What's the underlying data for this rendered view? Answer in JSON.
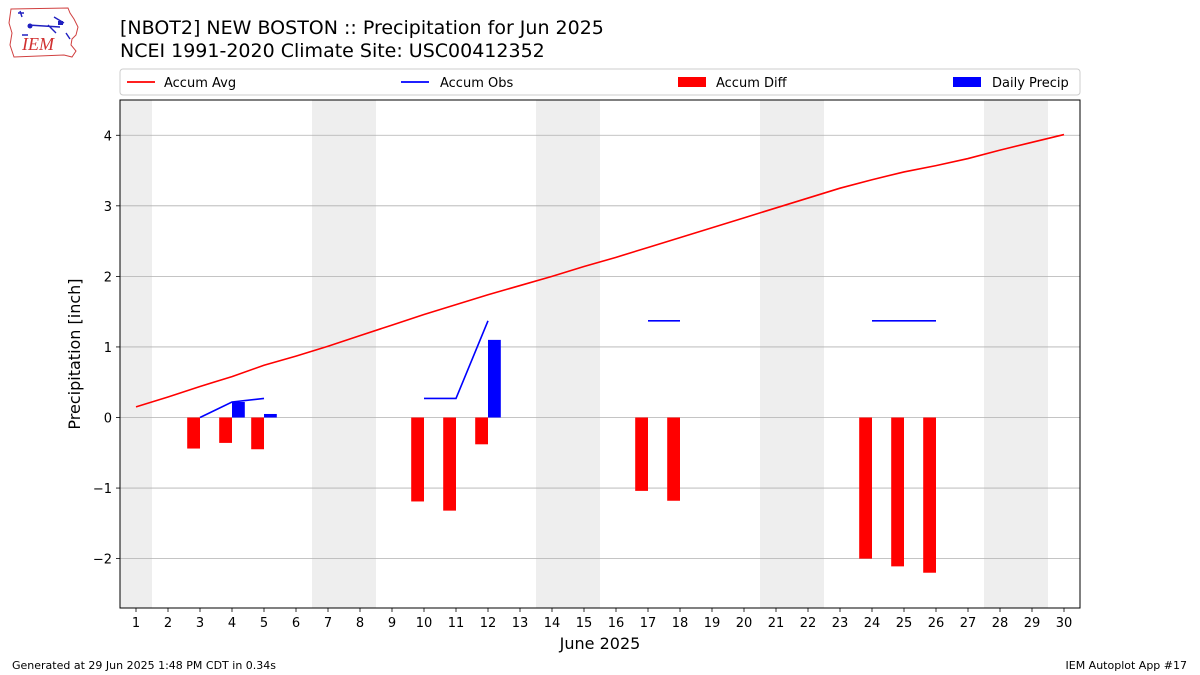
{
  "title_line1": "[NBOT2] NEW BOSTON :: Precipitation for Jun 2025",
  "title_line2": "NCEI 1991-2020 Climate Site: USC00412352",
  "logo_text": "IEM",
  "footer_left": "Generated at 29 Jun 2025 1:48 PM CDT in 0.34s",
  "footer_right": "IEM Autoplot App #17",
  "colors": {
    "accum_avg": "#ff0000",
    "accum_obs": "#0000ff",
    "accum_diff": "#ff0000",
    "daily_precip": "#0000ff",
    "weekend_shade": "#eeeeee",
    "grid": "#b0b0b0"
  },
  "chart_data": {
    "type": "bar",
    "xlabel": "June 2025",
    "ylabel": "Precipitation [inch]",
    "xlim": [
      0.5,
      30.5
    ],
    "ylim": [
      -2.7,
      4.5
    ],
    "x_ticks": [
      1,
      2,
      3,
      4,
      5,
      6,
      7,
      8,
      9,
      10,
      11,
      12,
      13,
      14,
      15,
      16,
      17,
      18,
      19,
      20,
      21,
      22,
      23,
      24,
      25,
      26,
      27,
      28,
      29,
      30
    ],
    "y_ticks": [
      -2,
      -1,
      0,
      1,
      2,
      3,
      4
    ],
    "y_tick_labels": [
      "−2",
      "−1",
      "0",
      "1",
      "2",
      "3",
      "4"
    ],
    "grid": "horizontal",
    "legend_position": "top",
    "weekend_spans": [
      [
        0.5,
        1.5
      ],
      [
        6.5,
        8.5
      ],
      [
        13.5,
        15.5
      ],
      [
        20.5,
        22.5
      ],
      [
        27.5,
        29.5
      ]
    ],
    "series": [
      {
        "name": "Accum Avg",
        "kind": "line",
        "x": [
          1,
          2,
          3,
          4,
          5,
          6,
          7,
          8,
          9,
          10,
          11,
          12,
          13,
          14,
          15,
          16,
          17,
          18,
          19,
          20,
          21,
          22,
          23,
          24,
          25,
          26,
          27,
          28,
          29,
          30
        ],
        "values": [
          0.15,
          0.29,
          0.44,
          0.58,
          0.74,
          0.87,
          1.01,
          1.16,
          1.31,
          1.46,
          1.6,
          1.74,
          1.87,
          2.0,
          2.14,
          2.27,
          2.41,
          2.55,
          2.69,
          2.83,
          2.97,
          3.11,
          3.25,
          3.37,
          3.48,
          3.57,
          3.67,
          3.79,
          3.9,
          4.01
        ]
      },
      {
        "name": "Accum Obs",
        "kind": "line",
        "segments": [
          {
            "x": [
              3,
              4,
              5
            ],
            "values": [
              0.0,
              0.22,
              0.27
            ]
          },
          {
            "x": [
              10,
              11,
              12
            ],
            "values": [
              0.27,
              0.27,
              1.37
            ]
          },
          {
            "x": [
              17,
              18
            ],
            "values": [
              1.37,
              1.37
            ]
          },
          {
            "x": [
              24,
              25,
              26
            ],
            "values": [
              1.37,
              1.37,
              1.37
            ]
          }
        ]
      },
      {
        "name": "Accum Diff",
        "kind": "bar",
        "x": [
          3,
          4,
          5,
          10,
          11,
          12,
          17,
          18,
          24,
          25,
          26
        ],
        "values": [
          -0.44,
          -0.36,
          -0.45,
          -1.19,
          -1.32,
          -0.38,
          -1.04,
          -1.18,
          -2.0,
          -2.11,
          -2.2
        ]
      },
      {
        "name": "Daily Precip",
        "kind": "bar",
        "x": [
          4,
          5,
          12
        ],
        "values": [
          0.22,
          0.05,
          1.1
        ]
      }
    ]
  }
}
